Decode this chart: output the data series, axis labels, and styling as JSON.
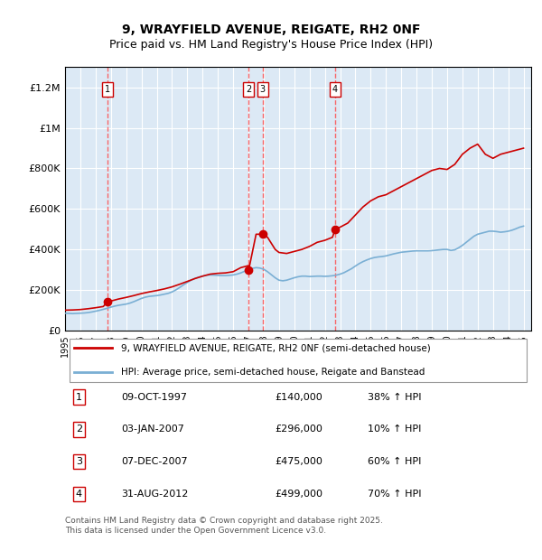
{
  "title_line1": "9, WRAYFIELD AVENUE, REIGATE, RH2 0NF",
  "title_line2": "Price paid vs. HM Land Registry's House Price Index (HPI)",
  "bg_color": "#dce9f5",
  "plot_bg_color": "#dce9f5",
  "red_line_color": "#cc0000",
  "blue_line_color": "#7aafd4",
  "grid_color": "#ffffff",
  "vline_color": "#ff4444",
  "transaction_marker_color": "#cc0000",
  "ylim": [
    0,
    1300000
  ],
  "yticks": [
    0,
    200000,
    400000,
    600000,
    800000,
    1000000,
    1200000
  ],
  "ytick_labels": [
    "£0",
    "£200K",
    "£400K",
    "£600K",
    "£800K",
    "£1M",
    "£1.2M"
  ],
  "xlim_start": 1995.0,
  "xlim_end": 2025.5,
  "legend_red_label": "9, WRAYFIELD AVENUE, REIGATE, RH2 0NF (semi-detached house)",
  "legend_blue_label": "HPI: Average price, semi-detached house, Reigate and Banstead",
  "transactions": [
    {
      "num": 1,
      "date": "09-OCT-1997",
      "year": 1997.77,
      "price": 140000,
      "pct": "38%",
      "direction": "↑"
    },
    {
      "num": 2,
      "date": "03-JAN-2007",
      "year": 2007.01,
      "price": 296000,
      "pct": "10%",
      "direction": "↑"
    },
    {
      "num": 3,
      "date": "07-DEC-2007",
      "year": 2007.93,
      "price": 475000,
      "pct": "60%",
      "direction": "↑"
    },
    {
      "num": 4,
      "date": "31-AUG-2012",
      "year": 2012.67,
      "price": 499000,
      "pct": "70%",
      "direction": "↑"
    }
  ],
  "footer_text": "Contains HM Land Registry data © Crown copyright and database right 2025.\nThis data is licensed under the Open Government Licence v3.0.",
  "hpi_data": {
    "years": [
      1995.0,
      1995.25,
      1995.5,
      1995.75,
      1996.0,
      1996.25,
      1996.5,
      1996.75,
      1997.0,
      1997.25,
      1997.5,
      1997.75,
      1998.0,
      1998.25,
      1998.5,
      1998.75,
      1999.0,
      1999.25,
      1999.5,
      1999.75,
      2000.0,
      2000.25,
      2000.5,
      2000.75,
      2001.0,
      2001.25,
      2001.5,
      2001.75,
      2002.0,
      2002.25,
      2002.5,
      2002.75,
      2003.0,
      2003.25,
      2003.5,
      2003.75,
      2004.0,
      2004.25,
      2004.5,
      2004.75,
      2005.0,
      2005.25,
      2005.5,
      2005.75,
      2006.0,
      2006.25,
      2006.5,
      2006.75,
      2007.0,
      2007.25,
      2007.5,
      2007.75,
      2008.0,
      2008.25,
      2008.5,
      2008.75,
      2009.0,
      2009.25,
      2009.5,
      2009.75,
      2010.0,
      2010.25,
      2010.5,
      2010.75,
      2011.0,
      2011.25,
      2011.5,
      2011.75,
      2012.0,
      2012.25,
      2012.5,
      2012.75,
      2013.0,
      2013.25,
      2013.5,
      2013.75,
      2014.0,
      2014.25,
      2014.5,
      2014.75,
      2015.0,
      2015.25,
      2015.5,
      2015.75,
      2016.0,
      2016.25,
      2016.5,
      2016.75,
      2017.0,
      2017.25,
      2017.5,
      2017.75,
      2018.0,
      2018.25,
      2018.5,
      2018.75,
      2019.0,
      2019.25,
      2019.5,
      2019.75,
      2020.0,
      2020.25,
      2020.5,
      2020.75,
      2021.0,
      2021.25,
      2021.5,
      2021.75,
      2022.0,
      2022.25,
      2022.5,
      2022.75,
      2023.0,
      2023.25,
      2023.5,
      2023.75,
      2024.0,
      2024.25,
      2024.5,
      2024.75,
      2025.0
    ],
    "values": [
      85000,
      84000,
      83000,
      84000,
      85000,
      86000,
      88000,
      91000,
      95000,
      99000,
      104000,
      109000,
      115000,
      120000,
      124000,
      127000,
      130000,
      135000,
      142000,
      150000,
      158000,
      164000,
      168000,
      170000,
      172000,
      175000,
      179000,
      183000,
      190000,
      200000,
      212000,
      225000,
      237000,
      248000,
      257000,
      263000,
      268000,
      272000,
      274000,
      273000,
      272000,
      271000,
      271000,
      272000,
      274000,
      278000,
      284000,
      292000,
      300000,
      306000,
      310000,
      308000,
      302000,
      290000,
      275000,
      260000,
      248000,
      245000,
      248000,
      254000,
      260000,
      265000,
      268000,
      268000,
      266000,
      267000,
      268000,
      268000,
      267000,
      268000,
      270000,
      273000,
      278000,
      285000,
      295000,
      305000,
      318000,
      330000,
      340000,
      348000,
      355000,
      360000,
      363000,
      365000,
      368000,
      373000,
      378000,
      382000,
      386000,
      388000,
      390000,
      392000,
      393000,
      393000,
      393000,
      393000,
      394000,
      396000,
      398000,
      400000,
      400000,
      395000,
      398000,
      408000,
      420000,
      435000,
      450000,
      465000,
      475000,
      480000,
      485000,
      490000,
      490000,
      488000,
      485000,
      487000,
      490000,
      495000,
      502000,
      510000,
      515000
    ]
  },
  "red_data": {
    "years": [
      1995.0,
      1995.5,
      1996.0,
      1996.5,
      1997.0,
      1997.5,
      1997.77,
      1998.0,
      1998.5,
      1999.0,
      1999.5,
      2000.0,
      2000.5,
      2001.0,
      2001.5,
      2002.0,
      2002.5,
      2003.0,
      2003.5,
      2004.0,
      2004.5,
      2005.0,
      2005.5,
      2006.0,
      2006.5,
      2007.0,
      2007.01,
      2007.5,
      2007.93,
      2008.25,
      2008.5,
      2008.75,
      2009.0,
      2009.5,
      2010.0,
      2010.5,
      2011.0,
      2011.5,
      2012.0,
      2012.5,
      2012.67,
      2013.0,
      2013.5,
      2014.0,
      2014.5,
      2015.0,
      2015.5,
      2016.0,
      2016.5,
      2017.0,
      2017.5,
      2018.0,
      2018.5,
      2019.0,
      2019.5,
      2020.0,
      2020.5,
      2021.0,
      2021.5,
      2022.0,
      2022.5,
      2023.0,
      2023.5,
      2024.0,
      2024.5,
      2025.0
    ],
    "values": [
      100000,
      101000,
      103000,
      107000,
      112000,
      118000,
      140000,
      145000,
      155000,
      163000,
      172000,
      182000,
      190000,
      197000,
      205000,
      215000,
      228000,
      242000,
      256000,
      268000,
      278000,
      282000,
      284000,
      290000,
      310000,
      320000,
      296000,
      475000,
      475000,
      460000,
      430000,
      400000,
      385000,
      380000,
      390000,
      400000,
      415000,
      435000,
      445000,
      460000,
      499000,
      510000,
      530000,
      570000,
      610000,
      640000,
      660000,
      670000,
      690000,
      710000,
      730000,
      750000,
      770000,
      790000,
      800000,
      795000,
      820000,
      870000,
      900000,
      920000,
      870000,
      850000,
      870000,
      880000,
      890000,
      900000
    ]
  }
}
